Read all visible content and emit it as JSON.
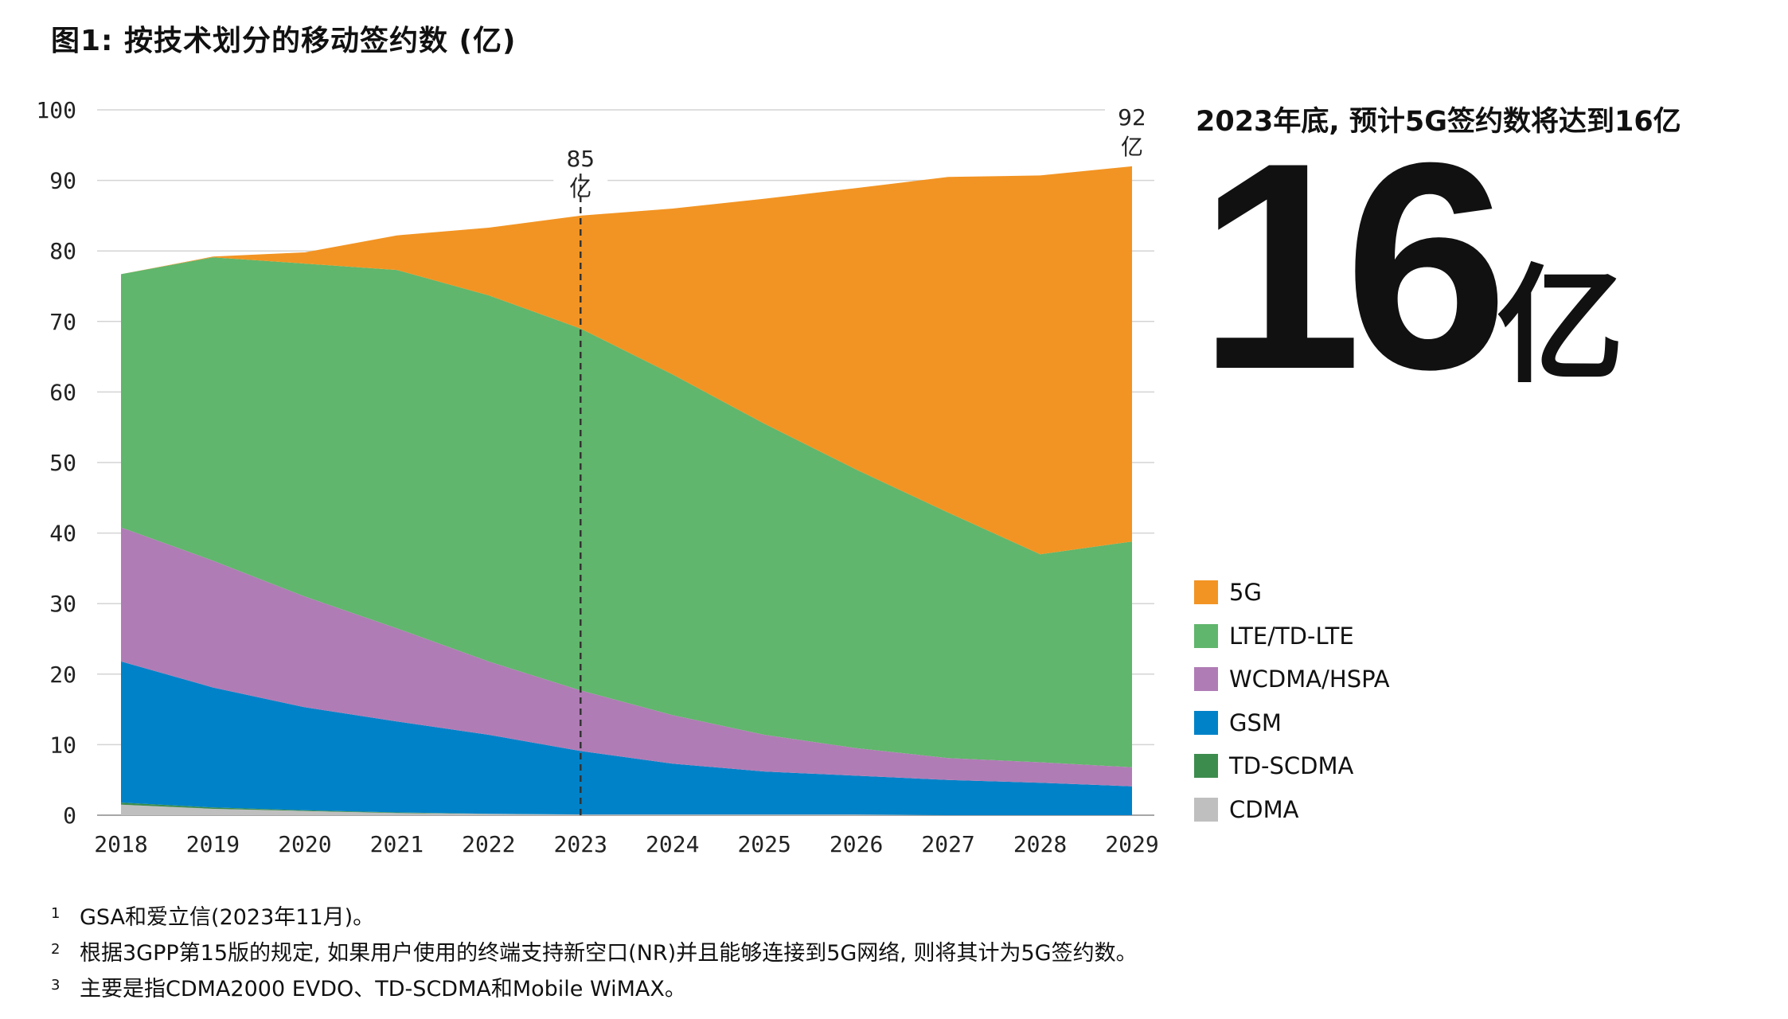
{
  "chart_data": {
    "type": "area",
    "title": "图1: 按技术划分的移动签约数 (亿)",
    "xlabel": "",
    "ylabel": "",
    "ylim": [
      0,
      100
    ],
    "yticks": [
      0,
      10,
      20,
      30,
      40,
      50,
      60,
      70,
      80,
      90,
      100
    ],
    "x": [
      "2018",
      "2019",
      "2020",
      "2021",
      "2022",
      "2023",
      "2024",
      "2025",
      "2026",
      "2027",
      "2028",
      "2029"
    ],
    "stack_order": [
      "CDMA",
      "TD-SCDMA",
      "GSM",
      "WCDMA/HSPA",
      "LTE/TD-LTE",
      "5G"
    ],
    "series": [
      {
        "name": "CDMA",
        "color": "#bfbfbf",
        "values": [
          1.5,
          0.9,
          0.6,
          0.3,
          0.2,
          0.1,
          0.1,
          0.1,
          0.1,
          0.0,
          0.0,
          0.0
        ]
      },
      {
        "name": "TD-SCDMA",
        "color": "#3c8c4e",
        "values": [
          0.3,
          0.2,
          0.1,
          0.1,
          0.0,
          0.0,
          0.0,
          0.0,
          0.0,
          0.0,
          0.0,
          0.0
        ]
      },
      {
        "name": "GSM",
        "color": "#0082c8",
        "values": [
          20.0,
          17.0,
          14.6,
          12.9,
          11.2,
          9.0,
          7.2,
          6.1,
          5.5,
          5.0,
          4.6,
          4.1
        ]
      },
      {
        "name": "WCDMA/HSPA",
        "color": "#b07cb5",
        "values": [
          19.0,
          18.0,
          15.7,
          13.2,
          10.4,
          8.6,
          6.9,
          5.2,
          3.9,
          3.1,
          2.9,
          2.7
        ]
      },
      {
        "name": "LTE/TD-LTE",
        "color": "#60b66c",
        "values": [
          35.9,
          43.0,
          47.2,
          50.8,
          51.9,
          51.3,
          48.3,
          44.1,
          39.5,
          34.8,
          29.5,
          32.0
        ]
      },
      {
        "name": "5G",
        "color": "#f29423",
        "values": [
          0.0,
          0.1,
          1.6,
          4.9,
          9.6,
          16.0,
          23.5,
          31.9,
          39.9,
          47.6,
          53.7,
          53.2
        ]
      }
    ],
    "totals_note": "stacked totals: 76.7, 79.2, 79.8, 82.2, 83.3, 85.0, 86.0, 87.4, 88.9, 90.5, 90.7, 92.0",
    "annotations": [
      {
        "x": "2023",
        "value_label": "85",
        "unit_label": "亿",
        "dashed_line": true
      },
      {
        "x": "2029",
        "value_label": "92",
        "unit_label": "亿",
        "dashed_line": false
      }
    ],
    "legend_position": "right",
    "grid": true
  },
  "callout": {
    "heading": "2023年底, 预计5G签约数将达到16亿",
    "value": "16",
    "unit": "亿"
  },
  "legend": [
    {
      "label": "5G",
      "color": "#f29423"
    },
    {
      "label": "LTE/TD-LTE",
      "color": "#60b66c"
    },
    {
      "label": "WCDMA/HSPA",
      "color": "#b07cb5"
    },
    {
      "label": "GSM",
      "color": "#0082c8"
    },
    {
      "label": "TD-SCDMA",
      "color": "#3c8c4e"
    },
    {
      "label": "CDMA",
      "color": "#bfbfbf"
    }
  ],
  "footnotes": [
    {
      "mark": "1",
      "text": "GSA和爱立信(2023年11月)。"
    },
    {
      "mark": "2",
      "text": "根据3GPP第15版的规定, 如果用户使用的终端支持新空口(NR)并且能够连接到5G网络, 则将其计为5G签约数。"
    },
    {
      "mark": "3",
      "text": "主要是指CDMA2000 EVDO、TD-SCDMA和Mobile WiMAX。"
    }
  ]
}
